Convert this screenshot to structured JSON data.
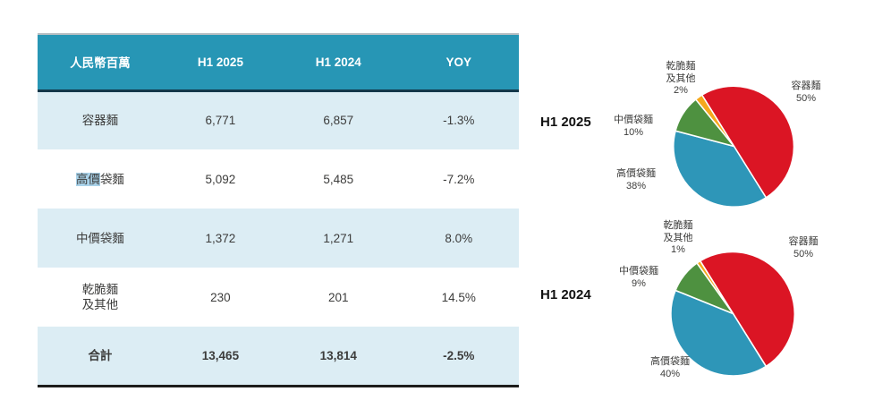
{
  "colors": {
    "header_teal": "#2796b5",
    "row_light_blue": "#dcedf4",
    "header_underline": "#14384a",
    "total_underline": "#1d1d1b",
    "text_highlight": "#a9d2e9",
    "pie_red": "#db1524",
    "pie_blue": "#2e96b8",
    "pie_green": "#4e9140",
    "pie_orange": "#f5a81c"
  },
  "table": {
    "unit_header": "人民幣百萬",
    "col_h1_2025": "H1 2025",
    "col_h1_2024": "H1 2024",
    "col_yoy": "YOY",
    "rows": [
      {
        "label": "容器麵",
        "h1_2025": "6,771",
        "h1_2024": "6,857",
        "yoy": "-1.3%"
      },
      {
        "label_highlighted": "高價",
        "label_rest": "袋麵",
        "h1_2025": "5,092",
        "h1_2024": "5,485",
        "yoy": "-7.2%"
      },
      {
        "label": "中價袋麵",
        "h1_2025": "1,372",
        "h1_2024": "1,271",
        "yoy": "8.0%"
      },
      {
        "label": "乾脆麵\n及其他",
        "h1_2025": "230",
        "h1_2024": "201",
        "yoy": "14.5%"
      }
    ],
    "total": {
      "label": "合計",
      "h1_2025": "13,465",
      "h1_2024": "13,814",
      "yoy": "-2.5%"
    }
  },
  "chart_data": [
    {
      "type": "pie",
      "title": "H1 2025",
      "start_angle_deg": -32,
      "legend_position": "around",
      "slices": [
        {
          "key": "container-noodles",
          "name": "容器麵",
          "pct": 50,
          "pct_label": "50%",
          "color": "#db1524"
        },
        {
          "key": "high-price-bag-noodles",
          "name": "高價袋麵",
          "pct": 38,
          "pct_label": "38%",
          "color": "#2e96b8"
        },
        {
          "key": "mid-price-bag-noodles",
          "name": "中價袋麵",
          "pct": 10,
          "pct_label": "10%",
          "color": "#4e9140"
        },
        {
          "key": "crispy-noodles-others",
          "name": "乾脆麵\n及其他",
          "pct": 2,
          "pct_label": "2%",
          "color": "#f5a81c"
        }
      ]
    },
    {
      "type": "pie",
      "title": "H1 2024",
      "start_angle_deg": -32,
      "legend_position": "around",
      "slices": [
        {
          "key": "container-noodles",
          "name": "容器麵",
          "pct": 50,
          "pct_label": "50%",
          "color": "#db1524"
        },
        {
          "key": "high-price-bag-noodles",
          "name": "高價袋麵",
          "pct": 40,
          "pct_label": "40%",
          "color": "#2e96b8"
        },
        {
          "key": "mid-price-bag-noodles",
          "name": "中價袋麵",
          "pct": 9,
          "pct_label": "9%",
          "color": "#4e9140"
        },
        {
          "key": "crispy-noodles-others",
          "name": "乾脆麵\n及其他",
          "pct": 1,
          "pct_label": "1%",
          "color": "#f5a81c"
        }
      ]
    }
  ]
}
